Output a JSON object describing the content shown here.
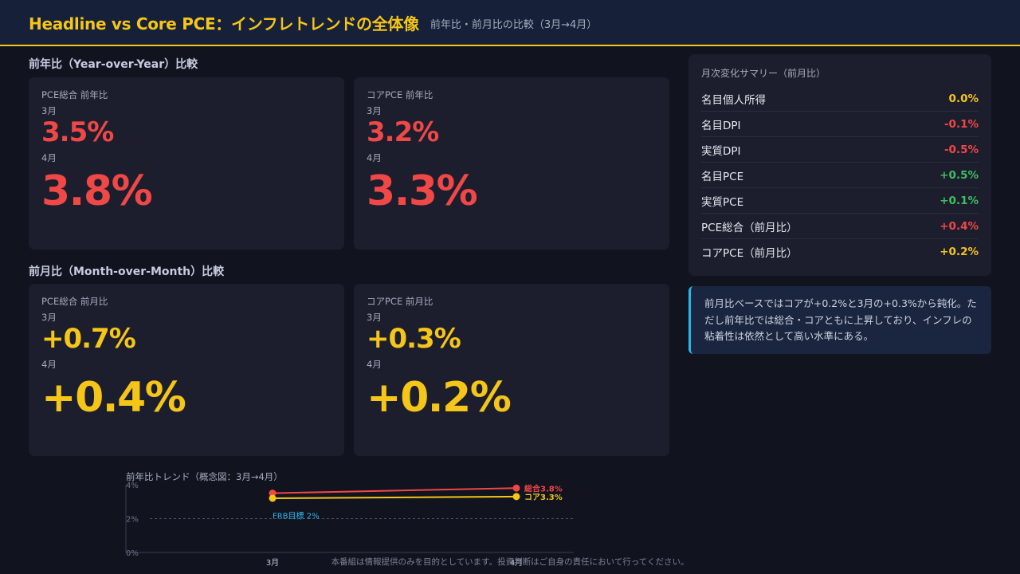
{
  "header": {
    "title": "Headline vs Core PCE：インフレトレンドの全体像",
    "subtitle": "前年比・前月比の比較（3月→4月）"
  },
  "yoy_section": {
    "title": "前年比（Year-over-Year）比較",
    "cards": [
      {
        "label": "PCE総合 前年比",
        "m1": "3月",
        "v1": "3.5%",
        "m2": "4月",
        "v2": "3.8%",
        "color": "#f04747"
      },
      {
        "label": "コアPCE 前年比",
        "m1": "3月",
        "v1": "3.2%",
        "m2": "4月",
        "v2": "3.3%",
        "color": "#f04747"
      }
    ]
  },
  "mom_section": {
    "title": "前月比（Month-over-Month）比較",
    "cards": [
      {
        "label": "PCE総合 前月比",
        "m1": "3月",
        "v1": "+0.7%",
        "m2": "4月",
        "v2": "+0.4%",
        "color": "#f5c518"
      },
      {
        "label": "コアPCE 前月比",
        "m1": "3月",
        "v1": "+0.3%",
        "m2": "4月",
        "v2": "+0.2%",
        "color": "#f5c518"
      }
    ]
  },
  "summary": {
    "title": "月次変化サマリー（前月比）",
    "rows": [
      {
        "label": "名目個人所得",
        "value": "0.0%",
        "color": "#f5c518"
      },
      {
        "label": "名目DPI",
        "value": "-0.1%",
        "color": "#f04747"
      },
      {
        "label": "実質DPI",
        "value": "-0.5%",
        "color": "#f04747"
      },
      {
        "label": "名目PCE",
        "value": "+0.5%",
        "color": "#3fbf5f"
      },
      {
        "label": "実質PCE",
        "value": "+0.1%",
        "color": "#3fbf5f"
      },
      {
        "label": "PCE総合（前月比）",
        "value": "+0.4%",
        "color": "#f04747"
      },
      {
        "label": "コアPCE（前月比）",
        "value": "+0.2%",
        "color": "#f5c518"
      }
    ]
  },
  "note": {
    "text": "前月比ベースではコアが+0.2%と3月の+0.3%から鈍化。ただし前年比では総合・コアともに上昇しており、インフレの粘着性は依然として高い水準にある。"
  },
  "chart_data": {
    "type": "line",
    "title": "前年比トレンド（概念図：3月→4月）",
    "categories": [
      "3月",
      "4月"
    ],
    "ylim": [
      0,
      4
    ],
    "yticks": [
      "0%",
      "2%",
      "4%"
    ],
    "series": [
      {
        "name": "総合",
        "values": [
          3.5,
          3.8
        ],
        "end_label": "総合3.8%",
        "color": "#f04747"
      },
      {
        "name": "コア",
        "values": [
          3.2,
          3.3
        ],
        "end_label": "コア3.3%",
        "color": "#f5c518"
      }
    ],
    "reference_line": {
      "value": 2,
      "label": "FRB目標 2%",
      "color": "#29b6e8"
    },
    "grid": false
  },
  "footer": {
    "text": "本番組は情報提供のみを目的としています。投資判断はご自身の責任において行ってください。"
  }
}
